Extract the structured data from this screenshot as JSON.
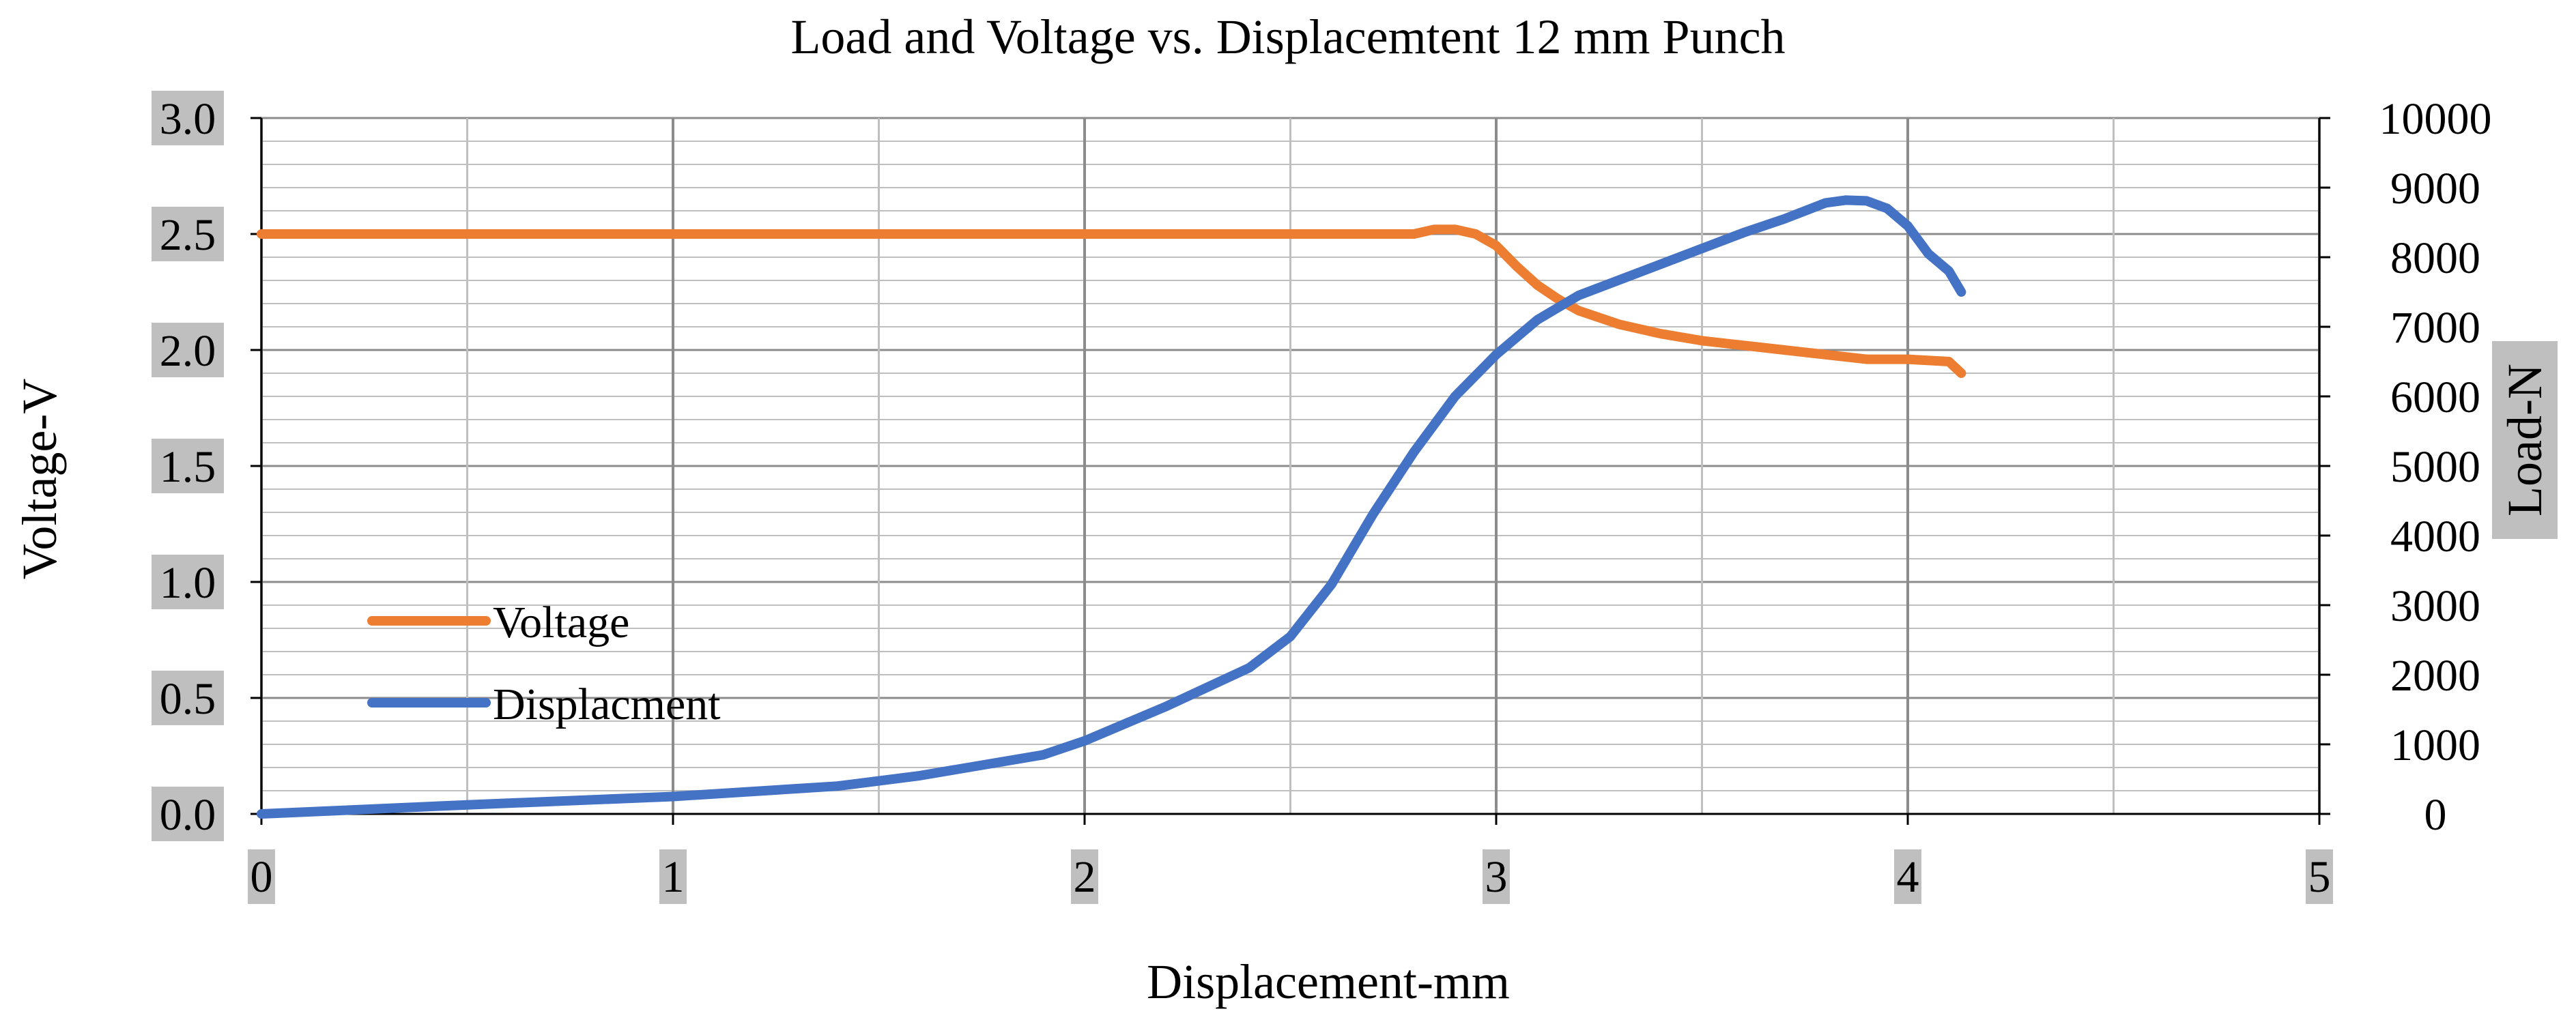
{
  "chart_data": {
    "type": "line",
    "title": "Load and Voltage vs. Displacemtent 12 mm Punch",
    "xlabel": "Displacement-mm",
    "ylabel": "Voltage-V",
    "y2label": "Load-N",
    "xlim": [
      0,
      5
    ],
    "ylim": [
      0,
      3.0
    ],
    "y2lim": [
      0,
      10000
    ],
    "x_ticks": [
      "0",
      "1",
      "2",
      "3",
      "4",
      "5"
    ],
    "y_ticks": [
      "0.0",
      "0.5",
      "1.0",
      "1.5",
      "2.0",
      "2.5",
      "3.0"
    ],
    "y2_ticks": [
      "0",
      "1000",
      "2000",
      "3000",
      "4000",
      "5000",
      "6000",
      "7000",
      "8000",
      "9000",
      "10000"
    ],
    "grid": true,
    "legend_position": "center-left",
    "series": [
      {
        "name": "Voltage",
        "axis": "left",
        "color": "#ED7D31",
        "x": [
          0,
          0.5,
          1.0,
          1.5,
          2.0,
          2.5,
          2.75,
          2.8,
          2.85,
          2.9,
          2.95,
          3.0,
          3.05,
          3.1,
          3.15,
          3.2,
          3.3,
          3.4,
          3.5,
          3.6,
          3.7,
          3.8,
          3.9,
          4.0,
          4.1,
          4.13
        ],
        "y": [
          2.5,
          2.5,
          2.5,
          2.5,
          2.5,
          2.5,
          2.5,
          2.5,
          2.52,
          2.52,
          2.5,
          2.45,
          2.36,
          2.28,
          2.22,
          2.17,
          2.11,
          2.07,
          2.04,
          2.02,
          2.0,
          1.98,
          1.96,
          1.96,
          1.95,
          1.9
        ]
      },
      {
        "name": "Displacment",
        "axis": "right",
        "color": "#4472C4",
        "x": [
          0,
          0.5,
          1.0,
          1.4,
          1.6,
          1.8,
          1.9,
          2.0,
          2.2,
          2.4,
          2.5,
          2.6,
          2.7,
          2.8,
          2.9,
          3.0,
          3.1,
          3.2,
          3.4,
          3.6,
          3.7,
          3.8,
          3.85,
          3.9,
          3.95,
          4.0,
          4.05,
          4.1,
          4.13
        ],
        "y": [
          0,
          130,
          250,
          400,
          550,
          750,
          850,
          1050,
          1550,
          2100,
          2550,
          3300,
          4300,
          5200,
          6000,
          6600,
          7100,
          7450,
          7900,
          8350,
          8550,
          8780,
          8820,
          8810,
          8700,
          8450,
          8050,
          7800,
          7500
        ]
      }
    ]
  }
}
